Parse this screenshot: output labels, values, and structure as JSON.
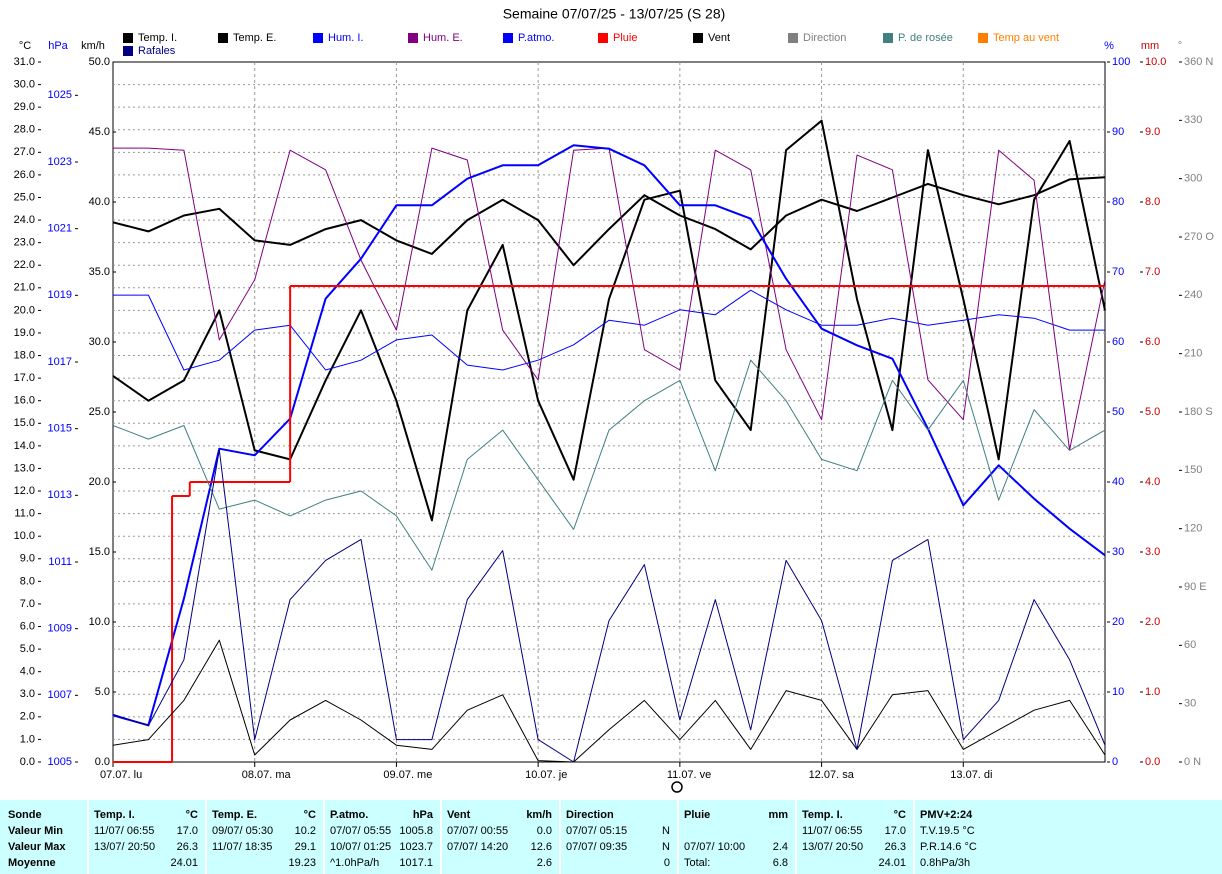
{
  "chart_data": {
    "type": "line",
    "title": "Semaine 07/07/25 - 13/07/25 (S 28)",
    "units": {
      "y": "°C",
      "y2": "hPa",
      "y3": "km/h",
      "y4": "%",
      "y5": "mm",
      "y6": "°"
    },
    "x": [
      0,
      6,
      12,
      18,
      24,
      30,
      36,
      42,
      48,
      54,
      60,
      66,
      72,
      78,
      84,
      90,
      96,
      102,
      108,
      114,
      120,
      126,
      132,
      138,
      144,
      150,
      156,
      162,
      168
    ],
    "xlim": [
      0,
      168
    ],
    "xticks": [
      {
        "value": 0,
        "label": "07.07. lu"
      },
      {
        "value": 24,
        "label": "08.07. ma"
      },
      {
        "value": 48,
        "label": "09.07. me"
      },
      {
        "value": 72,
        "label": "10.07. je"
      },
      {
        "value": 96,
        "label": "11.07. ve"
      },
      {
        "value": 120,
        "label": "12.07. sa"
      },
      {
        "value": 144,
        "label": "13.07. di"
      }
    ],
    "ylim": [
      0,
      31
    ],
    "yticks": [
      {
        "value": 0,
        "label": "0.0"
      },
      {
        "value": 1,
        "label": "1.0"
      },
      {
        "value": 2,
        "label": "2.0"
      },
      {
        "value": 3,
        "label": "3.0"
      },
      {
        "value": 4,
        "label": "4.0"
      },
      {
        "value": 5,
        "label": "5.0"
      },
      {
        "value": 6,
        "label": "6.0"
      },
      {
        "value": 7,
        "label": "7.0"
      },
      {
        "value": 8,
        "label": "8.0"
      },
      {
        "value": 9,
        "label": "9.0"
      },
      {
        "value": 10,
        "label": "10.0"
      },
      {
        "value": 11,
        "label": "11.0"
      },
      {
        "value": 12,
        "label": "12.0"
      },
      {
        "value": 13,
        "label": "13.0"
      },
      {
        "value": 14,
        "label": "14.0"
      },
      {
        "value": 15,
        "label": "15.0"
      },
      {
        "value": 16,
        "label": "16.0"
      },
      {
        "value": 17,
        "label": "17.0"
      },
      {
        "value": 18,
        "label": "18.0"
      },
      {
        "value": 19,
        "label": "19.0"
      },
      {
        "value": 20,
        "label": "20.0"
      },
      {
        "value": 21,
        "label": "21.0"
      },
      {
        "value": 22,
        "label": "22.0"
      },
      {
        "value": 23,
        "label": "23.0"
      },
      {
        "value": 24,
        "label": "24.0"
      },
      {
        "value": 25,
        "label": "25.0"
      },
      {
        "value": 26,
        "label": "26.0"
      },
      {
        "value": 27,
        "label": "27.0"
      },
      {
        "value": 28,
        "label": "28.0"
      },
      {
        "value": 29,
        "label": "29.0"
      },
      {
        "value": 30,
        "label": "30.0"
      },
      {
        "value": 31,
        "label": "31.0"
      }
    ],
    "y2lim": [
      1005,
      1026
    ],
    "y2ticks": [
      1005,
      1007,
      1009,
      1011,
      1013,
      1015,
      1017,
      1019,
      1021,
      1023,
      1025
    ],
    "y3lim": [
      0,
      50
    ],
    "y3ticks": [
      {
        "value": 0,
        "label": "0.0"
      },
      {
        "value": 5,
        "label": "5.0"
      },
      {
        "value": 10,
        "label": "10.0"
      },
      {
        "value": 15,
        "label": "15.0"
      },
      {
        "value": 20,
        "label": "20.0"
      },
      {
        "value": 25,
        "label": "25.0"
      },
      {
        "value": 30,
        "label": "30.0"
      },
      {
        "value": 35,
        "label": "35.0"
      },
      {
        "value": 40,
        "label": "40.0"
      },
      {
        "value": 45,
        "label": "45.0"
      },
      {
        "value": 50,
        "label": "50.0"
      }
    ],
    "y4lim": [
      0,
      100
    ],
    "y4ticks": [
      0,
      10,
      20,
      30,
      40,
      50,
      60,
      70,
      80,
      90,
      100
    ],
    "y5lim": [
      0,
      10
    ],
    "y5ticks": [
      {
        "value": 0,
        "label": "0.0"
      },
      {
        "value": 1,
        "label": "1.0"
      },
      {
        "value": 2,
        "label": "2.0"
      },
      {
        "value": 3,
        "label": "3.0"
      },
      {
        "value": 4,
        "label": "4.0"
      },
      {
        "value": 5,
        "label": "5.0"
      },
      {
        "value": 6,
        "label": "6.0"
      },
      {
        "value": 7,
        "label": "7.0"
      },
      {
        "value": 8,
        "label": "8.0"
      },
      {
        "value": 9,
        "label": "9.0"
      },
      {
        "value": 10,
        "label": "10.0"
      }
    ],
    "y6lim": [
      0,
      360
    ],
    "y6ticks": [
      {
        "value": 0,
        "label": "0 N"
      },
      30,
      60,
      {
        "value": 90,
        "label": "90 E"
      },
      120,
      150,
      {
        "value": 180,
        "label": "180 S"
      },
      210,
      240,
      {
        "value": 270,
        "label": "270 O"
      },
      300,
      330,
      {
        "value": 360,
        "label": "360 N"
      }
    ],
    "grid": true,
    "legend": [
      {
        "name": "Temp. I.",
        "color": "#000000"
      },
      {
        "name": "Temp. E.",
        "color": "#000000"
      },
      {
        "name": "Hum. I.",
        "color": "#0000ff"
      },
      {
        "name": "Hum. E.",
        "color": "#800080"
      },
      {
        "name": "P.atmo.",
        "color": "#0000ff"
      },
      {
        "name": "Pluie",
        "color": "#ff0000"
      },
      {
        "name": "Vent",
        "color": "#000000"
      },
      {
        "name": "Direction",
        "color": "#808080"
      },
      {
        "name": "P. de rosée",
        "color": "#408080"
      },
      {
        "name": "Temp au vent",
        "color": "#ff8000"
      },
      {
        "name": "Rafales",
        "color": "#000080"
      }
    ],
    "series": [
      {
        "name": "Temp. I.",
        "color": "#000000",
        "axis": "y",
        "line_width": 2,
        "values": [
          23.9,
          23.5,
          24.2,
          24.5,
          23.1,
          22.9,
          23.6,
          24.0,
          23.1,
          22.5,
          24.0,
          24.9,
          24.0,
          22.0,
          23.6,
          25.1,
          24.2,
          23.6,
          22.7,
          24.2,
          24.9,
          24.4,
          25.0,
          25.6,
          25.1,
          24.7,
          25.1,
          25.8,
          25.9
        ]
      },
      {
        "name": "Temp. E.",
        "color": "#000000",
        "axis": "y",
        "line_width": 2,
        "values": [
          17.1,
          16.0,
          16.9,
          20.0,
          13.8,
          13.4,
          16.9,
          20.0,
          16.0,
          10.7,
          20.0,
          22.9,
          16.0,
          12.5,
          20.5,
          24.9,
          25.3,
          16.9,
          14.7,
          27.1,
          28.4,
          20.5,
          14.7,
          27.1,
          20.5,
          13.4,
          24.9,
          27.5,
          20.0
        ]
      },
      {
        "name": "Hum. I.",
        "color": "#0000ff",
        "axis": "y4",
        "line_width": 1,
        "values": [
          66.7,
          66.7,
          56,
          57.4,
          61.7,
          62.4,
          56,
          57.4,
          60.3,
          61,
          56.7,
          56,
          57.4,
          59.6,
          63.1,
          62.4,
          64.6,
          63.9,
          67.4,
          64.6,
          62.4,
          62.4,
          63.4,
          62.4,
          63.1,
          63.9,
          63.4,
          61.7,
          61.7
        ]
      },
      {
        "name": "Hum. E.",
        "color": "#800080",
        "axis": "y4",
        "line_width": 1,
        "values": [
          87.7,
          87.7,
          87.4,
          60.3,
          68.9,
          87.4,
          84.6,
          71.7,
          61.7,
          87.7,
          86,
          61.7,
          54.6,
          87.4,
          87.7,
          58.9,
          56,
          87.4,
          84.6,
          58.9,
          48.9,
          86.7,
          84.6,
          54.6,
          48.9,
          87.4,
          83.1,
          44.6,
          68.9
        ]
      },
      {
        "name": "P.atmo.",
        "color": "#0000ff",
        "axis": "y2",
        "line_width": 2,
        "values": [
          1006.4,
          1006.1,
          1009.9,
          1014.4,
          1014.2,
          1015.3,
          1018.9,
          1020.1,
          1021.7,
          1021.7,
          1022.5,
          1022.9,
          1022.9,
          1023.5,
          1023.4,
          1022.9,
          1021.7,
          1021.7,
          1021.3,
          1019.5,
          1018.0,
          1017.5,
          1017.1,
          1015.0,
          1012.7,
          1013.9,
          1012.9,
          1012.0,
          1011.2
        ]
      },
      {
        "name": "Pluie",
        "color": "#ff0000",
        "axis": "y5",
        "line_width": 2,
        "step": true,
        "x": [
          0,
          10,
          13,
          30
        ],
        "values": [
          0,
          3.8,
          4.0,
          6.8
        ]
      },
      {
        "name": "Vent",
        "color": "#000000",
        "axis": "y3",
        "line_width": 1,
        "values": [
          1.2,
          1.6,
          4.4,
          8.7,
          0.5,
          3.0,
          4.4,
          3.0,
          1.2,
          0.9,
          3.7,
          4.8,
          0.1,
          0,
          2.3,
          4.4,
          1.6,
          4.4,
          0.9,
          5.1,
          4.4,
          0.9,
          4.8,
          5.1,
          0.9,
          2.3,
          3.7,
          4.4,
          0.5
        ]
      },
      {
        "name": "P. de rosée",
        "color": "#408080",
        "axis": "y",
        "line_width": 1,
        "values": [
          14.9,
          14.3,
          14.9,
          11.2,
          11.6,
          10.9,
          11.6,
          12.0,
          10.9,
          8.5,
          13.4,
          14.7,
          12.5,
          10.3,
          14.7,
          16.0,
          16.9,
          12.9,
          17.8,
          16.0,
          13.4,
          12.9,
          16.9,
          14.7,
          16.9,
          11.6,
          15.6,
          13.8,
          14.7
        ]
      },
      {
        "name": "Rafales",
        "color": "#000080",
        "axis": "y3",
        "line_width": 1,
        "values": [
          3.4,
          2.6,
          7.3,
          22.3,
          1.6,
          11.6,
          14.4,
          15.9,
          1.6,
          1.6,
          11.6,
          15.1,
          1.6,
          0,
          10.1,
          14.1,
          3.0,
          11.6,
          2.3,
          14.4,
          10.1,
          0.9,
          14.4,
          15.9,
          1.6,
          4.4,
          11.6,
          7.3,
          1.2
        ]
      }
    ]
  },
  "table": {
    "row_labels": [
      "Sonde",
      "Valeur Min",
      "Valeur Max",
      "Moyenne"
    ],
    "groups": [
      {
        "title": "Temp. I.",
        "unit": "°C",
        "rows": [
          [
            "11/07/ 06:55",
            "17.0"
          ],
          [
            "13/07/ 20:50",
            "26.3"
          ],
          [
            "24.01"
          ]
        ]
      },
      {
        "title": "Temp. E.",
        "unit": "°C",
        "rows": [
          [
            "09/07/ 05:30",
            "10.2"
          ],
          [
            "11/07/ 18:35",
            "29.1"
          ],
          [
            "19.23"
          ]
        ]
      },
      {
        "title": "P.atmo.",
        "unit": "hPa",
        "rows": [
          [
            "07/07/ 05:55",
            "1005.8"
          ],
          [
            "10/07/ 01:25",
            "1023.7"
          ],
          [
            "^1.0hPa/h",
            "1017.1"
          ]
        ]
      },
      {
        "title": "Vent",
        "unit": "km/h",
        "rows": [
          [
            "07/07/ 00:55",
            "0.0"
          ],
          [
            "07/07/ 14:20",
            "12.6"
          ],
          [
            "2.6"
          ]
        ]
      },
      {
        "title": "Direction",
        "rows": [
          [
            "07/07/ 05:15",
            "N"
          ],
          [
            "07/07/ 09:35",
            "N"
          ],
          [
            "0"
          ]
        ]
      },
      {
        "title": "Pluie",
        "unit": "mm",
        "rows": [
          [],
          [
            "07/07/ 10:00",
            "2.4"
          ],
          [
            "Total:",
            "6.8"
          ]
        ]
      },
      {
        "title": "Temp. I.",
        "unit": "°C",
        "rows": [
          [
            "11/07/ 06:55",
            "17.0"
          ],
          [
            "13/07/ 20:50",
            "26.3"
          ],
          [
            "24.01"
          ]
        ]
      },
      {
        "title": "PMV+2:24",
        "free": true,
        "rows": [
          [
            "T.V.19.5 °C"
          ],
          [
            "P.R.14.6 °C"
          ],
          [
            "0.8hPa/3h"
          ]
        ]
      }
    ]
  }
}
